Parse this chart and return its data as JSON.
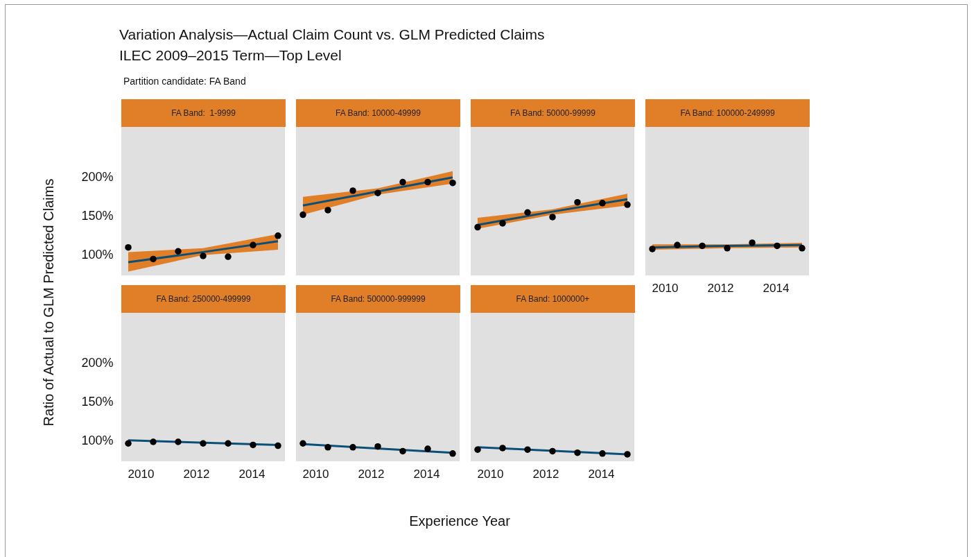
{
  "chart_data": [
    {
      "type": "other",
      "title": "Variation Analysis—Actual Claim Count vs. GLM Predicted Claims",
      "subtitle": "ILEC 2009–2015 Term—Top Level",
      "annotations": [
        "Partition candidate: FA Band"
      ],
      "xlabel": "Experience Year",
      "ylabel": "Ratio of Actual to GLM Predicted Claims"
    },
    {
      "type": "scatter",
      "title": "FA Band:  1-9999",
      "xlim": [
        2009.3,
        2015.2
      ],
      "ylim": [
        74,
        265
      ],
      "yticks": [
        {
          "value": 100,
          "label": "100%"
        },
        {
          "value": 150,
          "label": "150%"
        },
        {
          "value": 200,
          "label": "200%"
        }
      ],
      "tick_labels": "y",
      "series": [
        {
          "type": "line",
          "color": "#0b4f79",
          "x": [
            2009.55,
            2012.25,
            2014.95
          ],
          "values": [
            91,
            104,
            118
          ],
          "lower": [
            79,
            100,
            107
          ],
          "upper": [
            104,
            109,
            127
          ]
        },
        {
          "type": "scatter",
          "color": "#000000",
          "marker": "circle",
          "x": [
            2009.55,
            2010.45,
            2011.35,
            2012.25,
            2013.15,
            2014.05,
            2014.95
          ],
          "values": [
            110,
            95,
            105,
            99,
            98,
            113,
            125
          ]
        }
      ]
    },
    {
      "type": "scatter",
      "title": "FA Band: 10000-49999",
      "xlim": [
        2009.3,
        2015.2
      ],
      "ylim": [
        74,
        265
      ],
      "tick_labels": false,
      "series": [
        {
          "type": "line",
          "color": "#0b4f79",
          "x": [
            2009.55,
            2012.25,
            2014.95
          ],
          "values": [
            164,
            182,
            200
          ],
          "lower": [
            152,
            178,
            192
          ],
          "upper": [
            175,
            186,
            208
          ]
        },
        {
          "type": "scatter",
          "color": "#000000",
          "marker": "circle",
          "x": [
            2009.55,
            2010.45,
            2011.35,
            2012.25,
            2013.15,
            2014.05,
            2014.95
          ],
          "values": [
            152,
            158,
            183,
            180,
            194,
            194,
            193
          ]
        }
      ]
    },
    {
      "type": "scatter",
      "title": "FA Band: 50000-99999",
      "xlim": [
        2009.3,
        2015.2
      ],
      "ylim": [
        74,
        265
      ],
      "tick_labels": false,
      "series": [
        {
          "type": "line",
          "color": "#0b4f79",
          "x": [
            2009.55,
            2012.25,
            2014.95
          ],
          "values": [
            139,
            156,
            172
          ],
          "lower": [
            134,
            152,
            164
          ],
          "upper": [
            148,
            159,
            179
          ]
        },
        {
          "type": "scatter",
          "color": "#000000",
          "marker": "circle",
          "x": [
            2009.55,
            2010.45,
            2011.35,
            2012.25,
            2013.15,
            2014.05,
            2014.95
          ],
          "values": [
            136,
            141,
            155,
            149,
            168,
            167,
            165
          ]
        }
      ]
    },
    {
      "type": "scatter",
      "title": "FA Band: 100000-249999",
      "xlim": [
        2009.3,
        2015.2
      ],
      "xticks": [
        2010,
        2012,
        2014
      ],
      "ylim": [
        74,
        265
      ],
      "tick_labels": "x",
      "series": [
        {
          "type": "line",
          "color": "#0b4f79",
          "x": [
            2009.55,
            2012.25,
            2014.95
          ],
          "values": [
            110,
            112,
            113
          ],
          "lower": [
            107,
            109,
            110
          ],
          "upper": [
            114,
            114,
            116
          ]
        },
        {
          "type": "scatter",
          "color": "#000000",
          "marker": "circle",
          "x": [
            2009.55,
            2010.45,
            2011.35,
            2012.25,
            2013.15,
            2014.05,
            2014.95
          ],
          "values": [
            108,
            113,
            112,
            109,
            116,
            112,
            109
          ]
        }
      ]
    },
    {
      "type": "scatter",
      "title": "FA Band: 250000-499999",
      "xlim": [
        2009.3,
        2015.2
      ],
      "xticks": [
        2010,
        2012,
        2014
      ],
      "ylim": [
        74,
        265
      ],
      "yticks": [
        {
          "value": 100,
          "label": "100%"
        },
        {
          "value": 150,
          "label": "150%"
        },
        {
          "value": 200,
          "label": "200%"
        }
      ],
      "series": [
        {
          "type": "line",
          "color": "#0b4f79",
          "x": [
            2009.55,
            2014.95
          ],
          "values": [
            101,
            95
          ]
        },
        {
          "type": "scatter",
          "color": "#000000",
          "marker": "circle",
          "x": [
            2009.55,
            2010.45,
            2011.35,
            2012.25,
            2013.15,
            2014.05,
            2014.95
          ],
          "values": [
            97,
            99,
            99,
            97,
            97,
            95,
            94
          ]
        }
      ]
    },
    {
      "type": "scatter",
      "title": "FA Band: 500000-999999",
      "xlim": [
        2009.3,
        2015.2
      ],
      "xticks": [
        2010,
        2012,
        2014
      ],
      "ylim": [
        74,
        265
      ],
      "tick_labels": "x",
      "series": [
        {
          "type": "line",
          "color": "#0b4f79",
          "x": [
            2009.55,
            2014.95
          ],
          "values": [
            96,
            85
          ]
        },
        {
          "type": "scatter",
          "color": "#000000",
          "marker": "circle",
          "x": [
            2009.55,
            2010.45,
            2011.35,
            2012.25,
            2013.15,
            2014.05,
            2014.95
          ],
          "values": [
            97,
            92,
            92,
            93,
            87,
            90,
            84
          ]
        }
      ]
    },
    {
      "type": "scatter",
      "title": "FA Band: 1000000+",
      "xlim": [
        2009.3,
        2015.2
      ],
      "xticks": [
        2010,
        2012,
        2014
      ],
      "ylim": [
        74,
        265
      ],
      "tick_labels": "x",
      "series": [
        {
          "type": "line",
          "color": "#0b4f79",
          "x": [
            2009.55,
            2014.95
          ],
          "values": [
            92,
            83
          ]
        },
        {
          "type": "scatter",
          "color": "#000000",
          "marker": "circle",
          "x": [
            2009.55,
            2010.45,
            2011.35,
            2012.25,
            2013.15,
            2014.05,
            2014.95
          ],
          "values": [
            89,
            91,
            89,
            87,
            85,
            84,
            83
          ]
        }
      ]
    }
  ]
}
